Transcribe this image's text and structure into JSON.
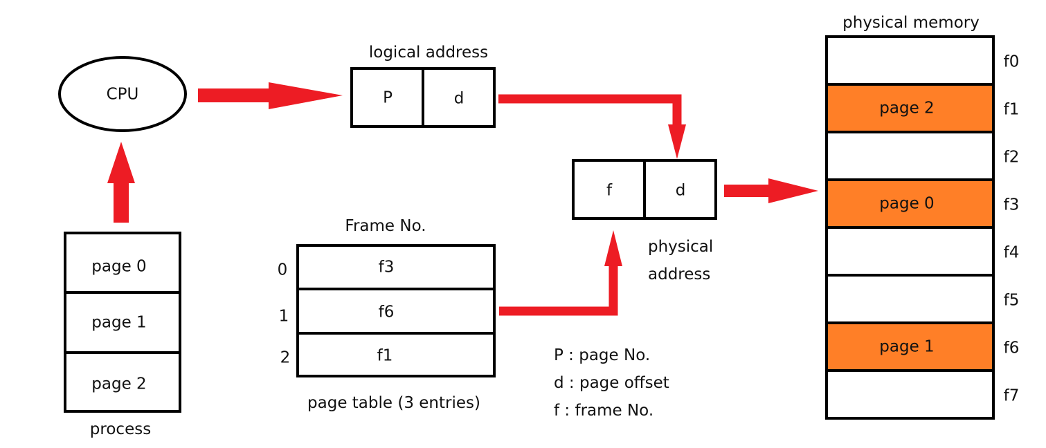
{
  "cpu": {
    "label": "CPU"
  },
  "process": {
    "caption": "process",
    "pages": [
      "page 0",
      "page 1",
      "page 2"
    ]
  },
  "logical_address": {
    "caption": "logical address",
    "fields": [
      "P",
      "d"
    ]
  },
  "physical_address": {
    "caption_line1": "physical",
    "caption_line2": "address",
    "fields": [
      "f",
      "d"
    ]
  },
  "page_table": {
    "header": "Frame No.",
    "caption": "page table (3 entries)",
    "indices": [
      "0",
      "1",
      "2"
    ],
    "entries": [
      "f3",
      "f6",
      "f1"
    ]
  },
  "legend": {
    "lines": [
      "P : page No.",
      "d : page offset",
      "f : frame No."
    ]
  },
  "physical_memory": {
    "caption": "physical memory",
    "frames": [
      {
        "label": "f0",
        "content": "",
        "occupied": false
      },
      {
        "label": "f1",
        "content": "page 2",
        "occupied": true
      },
      {
        "label": "f2",
        "content": "",
        "occupied": false
      },
      {
        "label": "f3",
        "content": "page 0",
        "occupied": true
      },
      {
        "label": "f4",
        "content": "",
        "occupied": false
      },
      {
        "label": "f5",
        "content": "",
        "occupied": false
      },
      {
        "label": "f6",
        "content": "page 1",
        "occupied": true
      },
      {
        "label": "f7",
        "content": "",
        "occupied": false
      }
    ]
  },
  "colors": {
    "arrow": "#ed1c24",
    "occupied_frame": "#ff7f27",
    "stroke": "#000000"
  }
}
